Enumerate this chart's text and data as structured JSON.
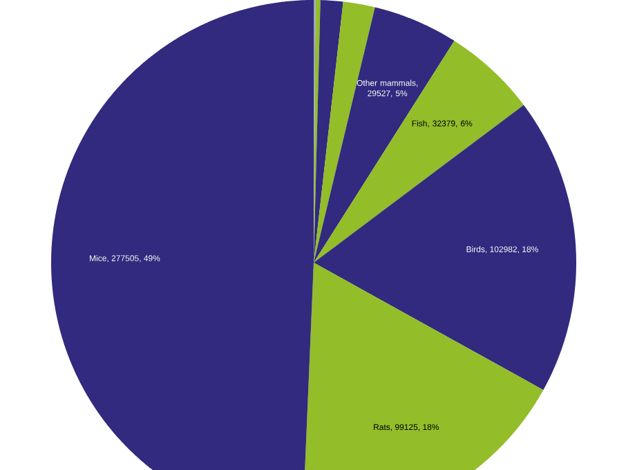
{
  "chart_data": {
    "type": "pie",
    "categories": [
      null,
      null,
      null,
      null,
      "Other mammals",
      "Fish",
      "Birds",
      "Rats",
      "Mice"
    ],
    "values": [
      600,
      1700,
      7800,
      11000,
      29527,
      32379,
      102982,
      99125,
      277505
    ],
    "colors": [
      "#9a9ad8",
      "#93bd29",
      "#312a7e",
      "#93bd29",
      "#312a7e",
      "#93bd29",
      "#312a7e",
      "#93bd29",
      "#312a7e"
    ],
    "value_labels": [
      null,
      null,
      null,
      null,
      ", 29527, 5%",
      ", 32379, 6%",
      ", 102982, 18%",
      ", 99125, 18%",
      ", 277505, 49%"
    ]
  }
}
